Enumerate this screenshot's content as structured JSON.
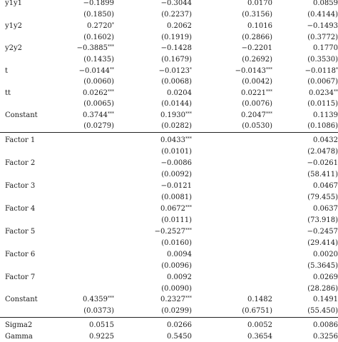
{
  "table": {
    "rows": [
      {
        "label": "y1y1",
        "c1": "−0.1899",
        "c2": "−0.3044",
        "c3": "0.0170",
        "c4": "0.0859"
      },
      {
        "label": "",
        "c1": "(0.1850)",
        "c2": "(0.2237)",
        "c3": "(0.3156)",
        "c4": "(0.4144)"
      },
      {
        "label": "y1y2",
        "c1": "0.2720*",
        "c2": "0.2062",
        "c3": "0.1016",
        "c4": "−0.1493"
      },
      {
        "label": "",
        "c1": "(0.1602)",
        "c2": "(0.1919)",
        "c3": "(0.2866)",
        "c4": "(0.3772)"
      },
      {
        "label": "y2y2",
        "c1": "−0.3885***",
        "c2": "−0.1428",
        "c3": "−0.2201",
        "c4": "0.1770"
      },
      {
        "label": "",
        "c1": "(0.1435)",
        "c2": "(0.1679)",
        "c3": "(0.2692)",
        "c4": "(0.3530)"
      },
      {
        "label": "t",
        "c1": "−0.0144**",
        "c2": "−0.0123*",
        "c3": "−0.0143***",
        "c4": "−0.0118*"
      },
      {
        "label": "",
        "c1": "(0.0060)",
        "c2": "(0.0068)",
        "c3": "(0.0042)",
        "c4": "(0.0067)"
      },
      {
        "label": "tt",
        "c1": "0.0262***",
        "c2": "0.0204",
        "c3": "0.0221***",
        "c4": "0.0234**"
      },
      {
        "label": "",
        "c1": "(0.0065)",
        "c2": "(0.0144)",
        "c3": "(0.0076)",
        "c4": "(0.0115)"
      },
      {
        "label": "Constant",
        "c1": "0.3744***",
        "c2": "0.1930***",
        "c3": "0.2047***",
        "c4": "0.1139"
      },
      {
        "label": "",
        "c1": "(0.0279)",
        "c2": "(0.0282)",
        "c3": "(0.0530)",
        "c4": "(0.1086)"
      },
      {
        "label": "Factor 1",
        "c1": "",
        "c2": "0.0433***",
        "c3": "",
        "c4": "0.0432"
      },
      {
        "label": "",
        "c1": "",
        "c2": "(0.0101)",
        "c3": "",
        "c4": "(2.0478)"
      },
      {
        "label": "Factor 2",
        "c1": "",
        "c2": "−0.0086",
        "c3": "",
        "c4": "−0.0261"
      },
      {
        "label": "",
        "c1": "",
        "c2": "(0.0092)",
        "c3": "",
        "c4": "(58.411)"
      },
      {
        "label": "Factor 3",
        "c1": "",
        "c2": "−0.0121",
        "c3": "",
        "c4": "0.0467"
      },
      {
        "label": "",
        "c1": "",
        "c2": "(0.0081)",
        "c3": "",
        "c4": "(79.455)"
      },
      {
        "label": "Factor 4",
        "c1": "",
        "c2": "0.0672***",
        "c3": "",
        "c4": "0.0637"
      },
      {
        "label": "",
        "c1": "",
        "c2": "(0.0111)",
        "c3": "",
        "c4": "(73.918)"
      },
      {
        "label": "Factor 5",
        "c1": "",
        "c2": "−0.2527***",
        "c3": "",
        "c4": "−0.2457"
      },
      {
        "label": "",
        "c1": "",
        "c2": "(0.0160)",
        "c3": "",
        "c4": "(29.414)"
      },
      {
        "label": "Factor 6",
        "c1": "",
        "c2": "0.0094",
        "c3": "",
        "c4": "0.0020"
      },
      {
        "label": "",
        "c1": "",
        "c2": "(0.0096)",
        "c3": "",
        "c4": "(5.3645)"
      },
      {
        "label": "Factor 7",
        "c1": "",
        "c2": "0.0092",
        "c3": "",
        "c4": "0.0269"
      },
      {
        "label": "",
        "c1": "",
        "c2": "(0.0090)",
        "c3": "",
        "c4": "(28.286)"
      },
      {
        "label": "Constant",
        "c1": "0.4359***",
        "c2": "0.2327***",
        "c3": "0.1482",
        "c4": "0.1491"
      },
      {
        "label": "",
        "c1": "(0.0373)",
        "c2": "(0.0299)",
        "c3": "(0.6751)",
        "c4": "(55.450)"
      },
      {
        "label": "Sigma2",
        "c1": "0.0515",
        "c2": "0.0266",
        "c3": "0.0052",
        "c4": "0.0086"
      },
      {
        "label": "Gamma",
        "c1": "0.9225",
        "c2": "0.5450",
        "c3": "0.3654",
        "c4": "0.3256"
      }
    ]
  }
}
